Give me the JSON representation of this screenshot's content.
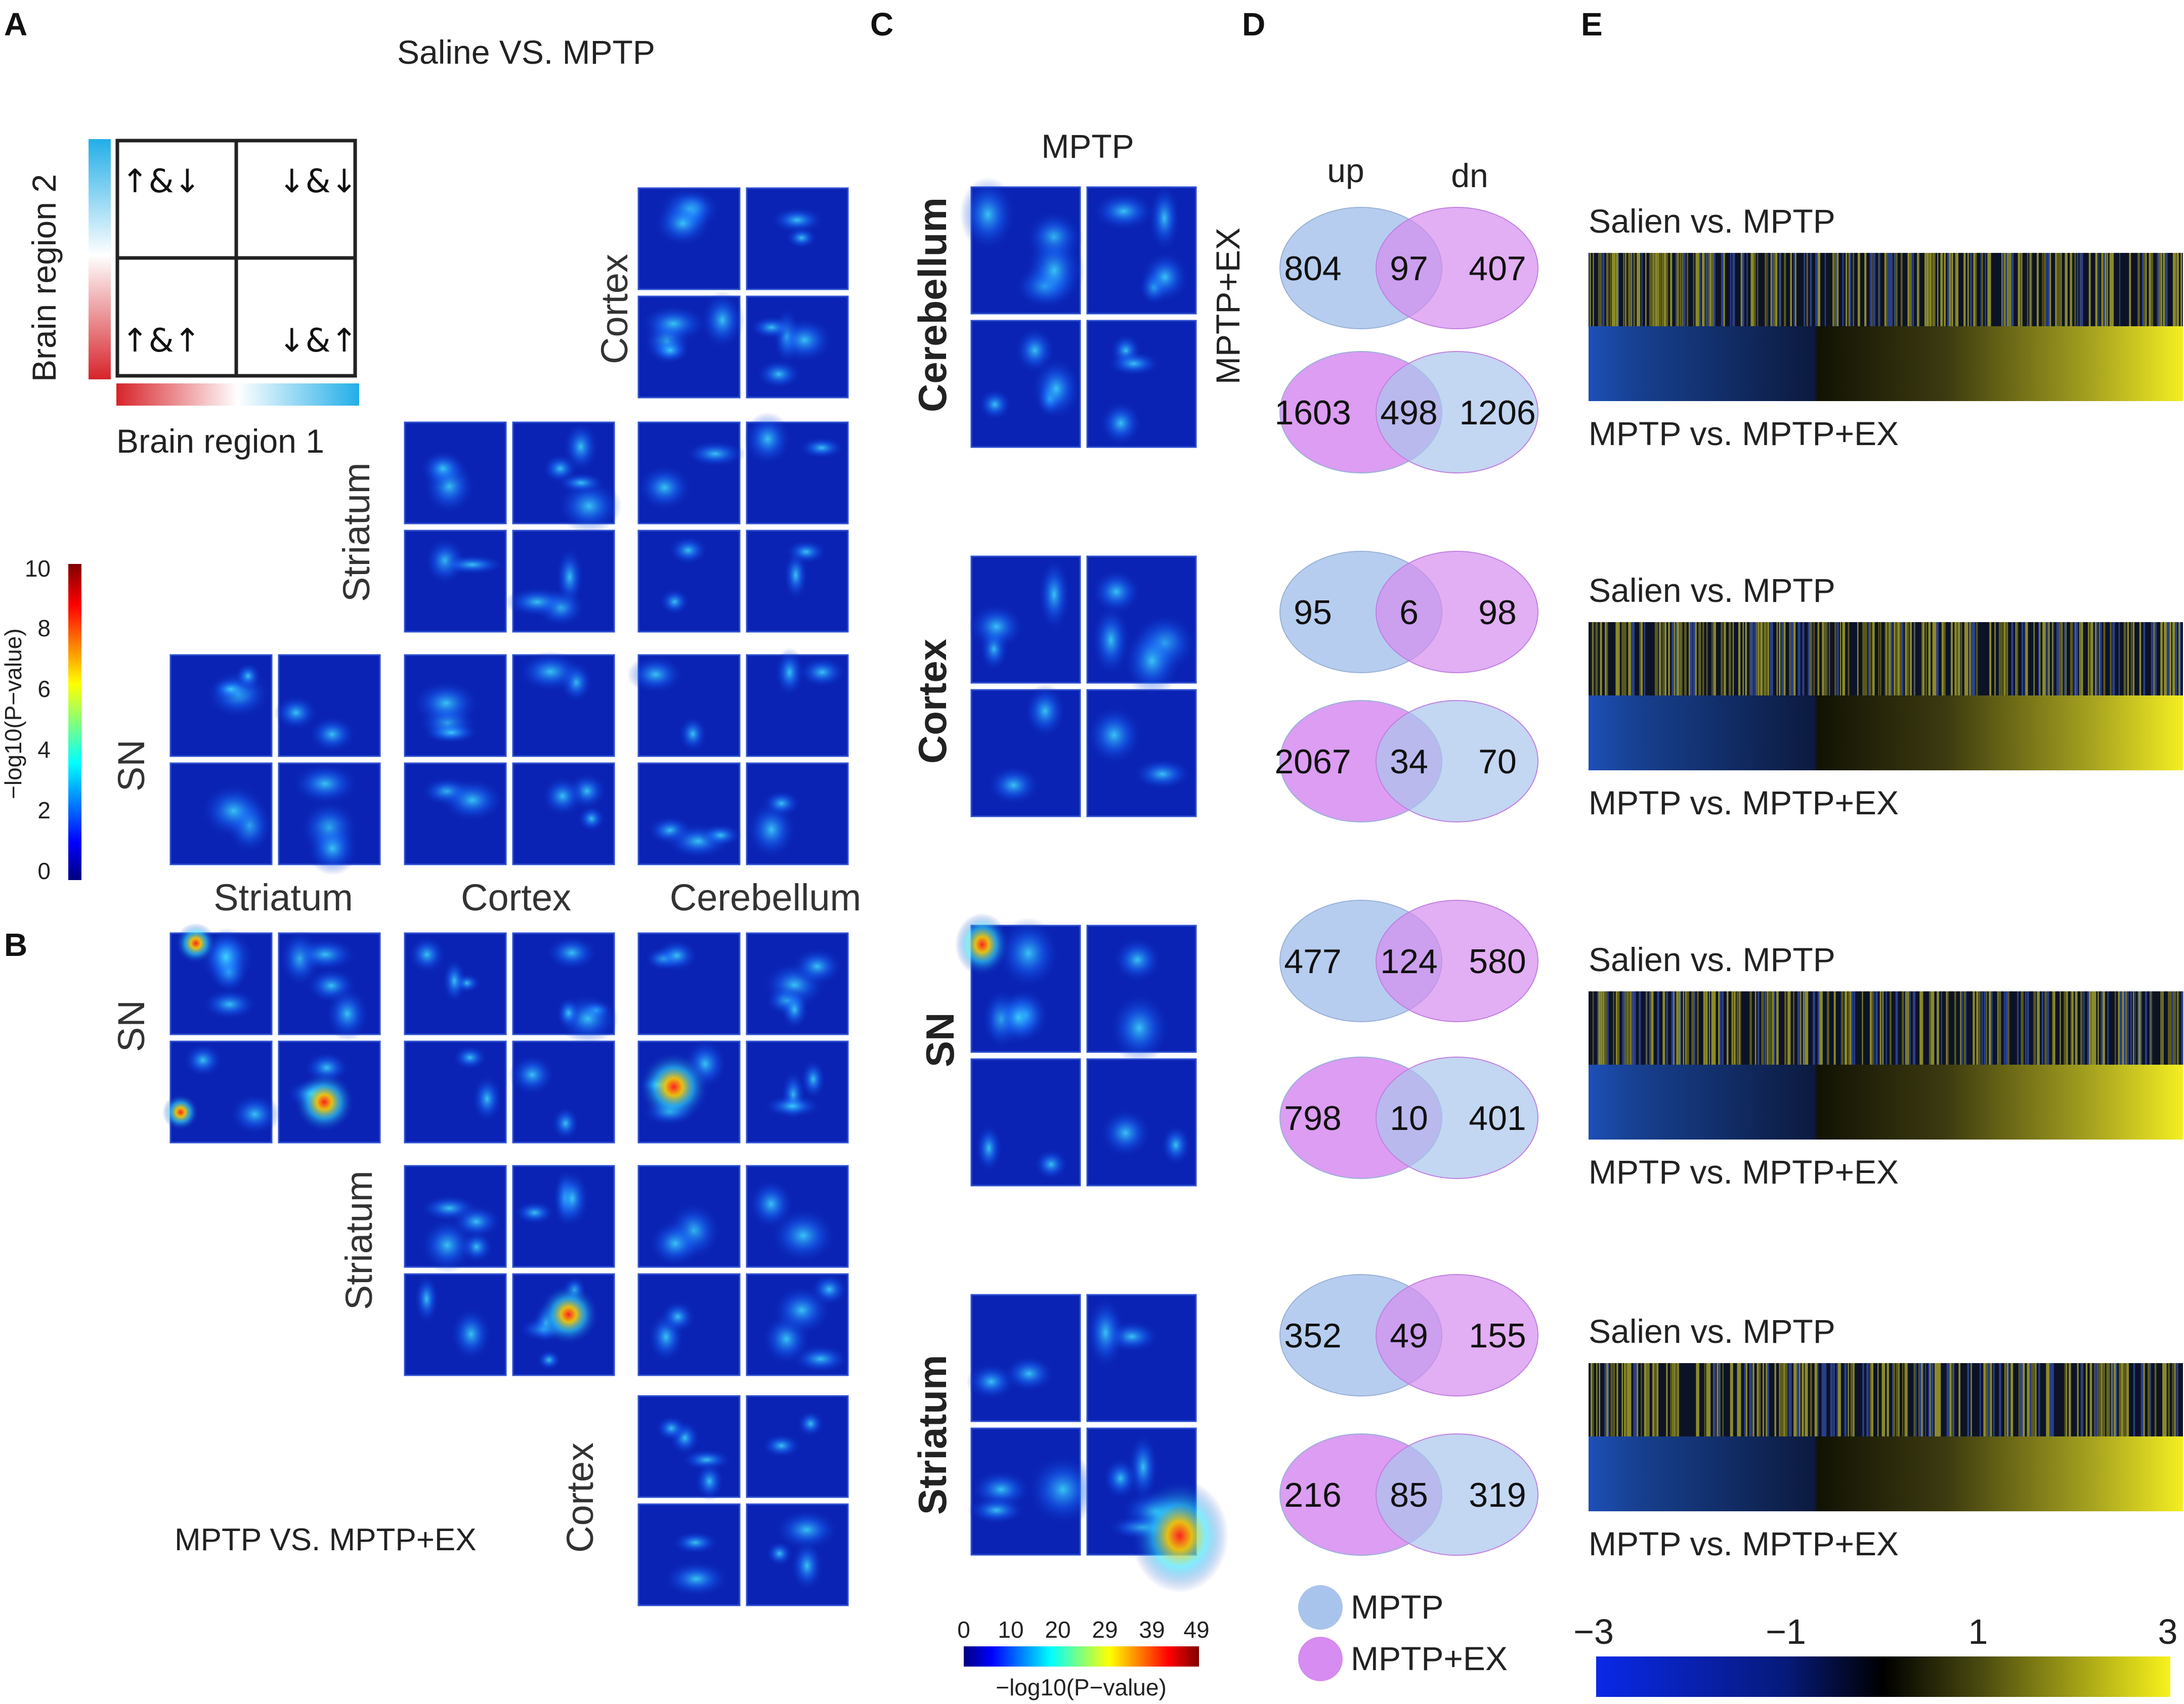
{
  "panel_labels": [
    "A",
    "B",
    "C",
    "D",
    "E"
  ],
  "panel_a": {
    "title": "Saline VS. MPTP",
    "legend": {
      "y_axis_label": "Brain region 2",
      "x_axis_label": "Brain region 1",
      "quadrants": [
        "↑&↓",
        "↓&↓",
        "↑&↑",
        "↓&↑"
      ]
    },
    "colorbar": {
      "label": "−log10(P−value)",
      "ticks": [
        "10",
        "8",
        "6",
        "4",
        "2",
        "0"
      ]
    },
    "row_labels": [
      "Cortex",
      "Striatum",
      "SN"
    ],
    "col_labels": [
      "Striatum",
      "Cortex",
      "Cerebellum"
    ]
  },
  "panel_b": {
    "title": "MPTP VS. MPTP+EX",
    "row_labels": [
      "SN",
      "Striatum",
      "Cortex"
    ]
  },
  "panel_c": {
    "header": "MPTP",
    "side_label": "MPTP+EX",
    "row_labels": [
      "Cerebellum",
      "Cortex",
      "SN",
      "Striatum"
    ],
    "colorbar": {
      "label": "−log10(P−value)",
      "ticks": [
        "0",
        "10",
        "20",
        "29",
        "39",
        "49"
      ]
    }
  },
  "panel_d": {
    "col_labels": [
      "up",
      "dn"
    ],
    "venns": [
      {
        "left": "804",
        "mid": "97",
        "right": "407"
      },
      {
        "left": "1603",
        "mid": "498",
        "right": "1206"
      },
      {
        "left": "95",
        "mid": "6",
        "right": "98"
      },
      {
        "left": "2067",
        "mid": "34",
        "right": "70"
      },
      {
        "left": "477",
        "mid": "124",
        "right": "580"
      },
      {
        "left": "798",
        "mid": "10",
        "right": "401"
      },
      {
        "left": "352",
        "mid": "49",
        "right": "155"
      },
      {
        "left": "216",
        "mid": "85",
        "right": "319"
      }
    ],
    "legend": [
      {
        "label": "MPTP",
        "color": "#a9c4ec"
      },
      {
        "label": "MPTP+EX",
        "color": "#d68cf0"
      }
    ]
  },
  "panel_e": {
    "blocks": [
      {
        "top": "Salien vs. MPTP",
        "bottom": "MPTP vs. MPTP+EX"
      },
      {
        "top": "Salien vs. MPTP",
        "bottom": "MPTP vs. MPTP+EX"
      },
      {
        "top": "Salien vs. MPTP",
        "bottom": "MPTP vs. MPTP+EX"
      },
      {
        "top": "Salien vs. MPTP",
        "bottom": "MPTP vs. MPTP+EX"
      }
    ],
    "colorbar_ticks": [
      "−3",
      "−1",
      "1",
      "3"
    ]
  },
  "colors": {
    "heatmap_bg": "#0a23b4",
    "jet": [
      "#00007f",
      "#0000ff",
      "#00ffff",
      "#ffff00",
      "#ff0000",
      "#7f0000"
    ],
    "mptp_circle": "#a9c4ec",
    "mptpex_circle": "#d68cf0",
    "overlap": "#9c88e6"
  }
}
